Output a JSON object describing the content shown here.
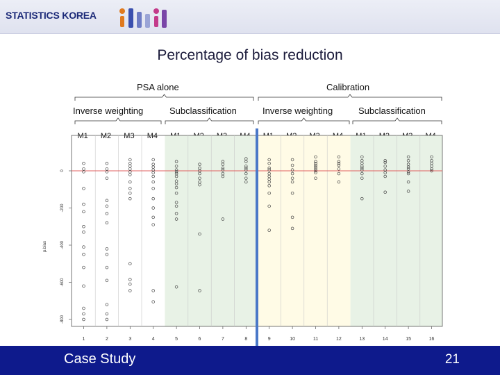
{
  "header": {
    "brand": "STATISTICS KOREA"
  },
  "slide": {
    "title": "Percentage of bias reduction"
  },
  "footer": {
    "title": "Case Study",
    "page_number": "21"
  },
  "groups_top": [
    "PSA alone",
    "Calibration"
  ],
  "groups_mid": [
    "Inverse weighting",
    "Subclassification",
    "Inverse weighting",
    "Subclassification"
  ],
  "method_labels": [
    "M1",
    "M2",
    "M3",
    "M4",
    "M1",
    "M2",
    "M3",
    "M4",
    "M1",
    "M2",
    "M3",
    "M4",
    "M1",
    "M2",
    "M3",
    "M4"
  ],
  "colors": {
    "accent": "#0e1a8c",
    "ref_line": "#e06060",
    "divider": "#4a78c8",
    "band_yellow": "#fffbe6",
    "band_green": "#e8f2e6"
  },
  "chart_data": {
    "type": "scatter",
    "title": "",
    "xlabel": "",
    "ylabel": "p.bias",
    "x_ticks": [
      "1",
      "2",
      "3",
      "4",
      "5",
      "6",
      "7",
      "8",
      "9",
      "10",
      "11",
      "12",
      "13",
      "14",
      "15",
      "16"
    ],
    "y_ticks": [
      "0",
      "-200",
      "-400",
      "-600",
      "-800"
    ],
    "ylim": [
      -840,
      60
    ],
    "reference_line": 0,
    "series": [
      {
        "x": 1,
        "values": [
          40,
          10,
          -5,
          -95,
          -180,
          -220,
          -300,
          -330,
          -410,
          -450,
          -520,
          -620,
          -740,
          -770,
          -800
        ]
      },
      {
        "x": 2,
        "values": [
          40,
          10,
          -5,
          -40,
          -160,
          -190,
          -230,
          -280,
          -420,
          -450,
          -520,
          -590,
          -720,
          -770,
          -800
        ]
      },
      {
        "x": 3,
        "values": [
          60,
          40,
          25,
          10,
          -5,
          -20,
          -60,
          -95,
          -120,
          -150,
          -500,
          -585,
          -610,
          -645
        ]
      },
      {
        "x": 4,
        "values": [
          60,
          35,
          20,
          5,
          -10,
          -30,
          -60,
          -95,
          -150,
          -200,
          -250,
          -290,
          -645,
          -705
        ]
      },
      {
        "x": 5,
        "values": [
          50,
          25,
          5,
          -5,
          -15,
          -30,
          -55,
          -70,
          -90,
          -120,
          -170,
          -190,
          -230,
          -260,
          -625
        ]
      },
      {
        "x": 6,
        "values": [
          35,
          15,
          0,
          -15,
          -40,
          -60,
          -75,
          -340,
          -645
        ]
      },
      {
        "x": 7,
        "values": [
          50,
          35,
          15,
          5,
          -15,
          -30,
          -260
        ]
      },
      {
        "x": 8,
        "values": [
          65,
          50,
          25,
          15,
          5,
          -15,
          -40,
          -60
        ]
      },
      {
        "x": 9,
        "values": [
          60,
          40,
          15,
          5,
          -15,
          -30,
          -45,
          -60,
          -80,
          -120,
          -190,
          -320
        ]
      },
      {
        "x": 10,
        "values": [
          60,
          30,
          5,
          -15,
          -40,
          -60,
          -120,
          -250,
          -310
        ]
      },
      {
        "x": 11,
        "values": [
          75,
          50,
          40,
          30,
          20,
          10,
          0,
          -10,
          -40
        ]
      },
      {
        "x": 12,
        "values": [
          75,
          50,
          40,
          30,
          10,
          -15,
          -60
        ]
      },
      {
        "x": 13,
        "values": [
          75,
          55,
          40,
          25,
          15,
          5,
          -15,
          -40,
          -150
        ]
      },
      {
        "x": 14,
        "values": [
          55,
          45,
          25,
          5,
          -10,
          -30,
          -115
        ]
      },
      {
        "x": 15,
        "values": [
          75,
          55,
          35,
          20,
          10,
          -5,
          -15,
          -60,
          -110
        ]
      },
      {
        "x": 16,
        "values": [
          75,
          55,
          40,
          25,
          10,
          0
        ]
      }
    ]
  }
}
